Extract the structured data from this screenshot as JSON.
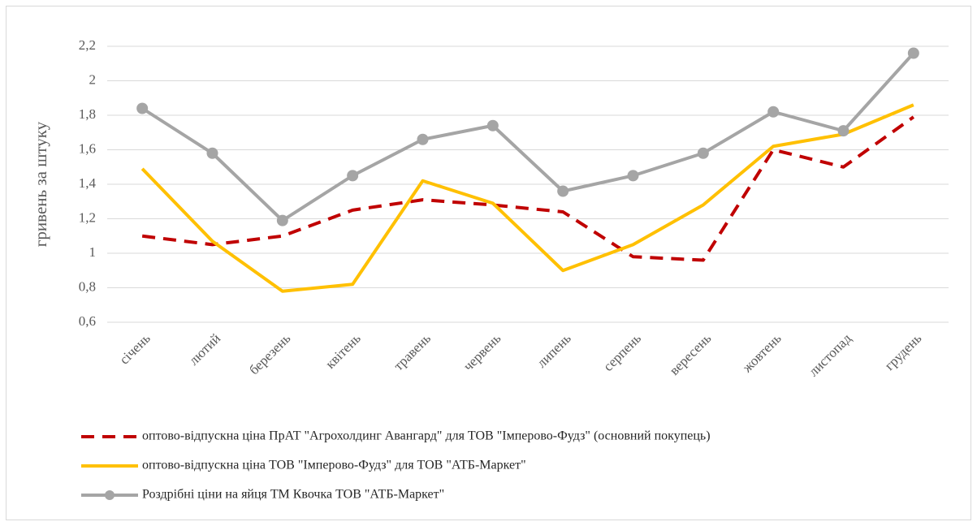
{
  "chart_data": {
    "type": "line",
    "y_label": "гривень за штуку",
    "categories": [
      "січень",
      "лютий",
      "березень",
      "квітень",
      "травень",
      "червень",
      "липень",
      "серпень",
      "вересень",
      "жовтень",
      "листопад",
      "грудень"
    ],
    "series": [
      {
        "name": "оптово-відпускна ціна ПрАТ \"Агрохолдинг Авангард\" для ТОВ \"Імперово-Фудз\" (основний покупець)",
        "color": "#c00000",
        "dashed": true,
        "markers": false,
        "values": [
          1.1,
          1.05,
          1.1,
          1.25,
          1.31,
          1.28,
          1.24,
          0.98,
          0.96,
          1.6,
          1.5,
          1.79
        ]
      },
      {
        "name": "оптово-відпускна ціна ТОВ \"Імперово-Фудз\" для ТОВ \"АТБ-Маркет\"",
        "color": "#ffc000",
        "dashed": false,
        "markers": false,
        "values": [
          1.49,
          1.07,
          0.78,
          0.82,
          1.42,
          1.29,
          0.9,
          1.05,
          1.28,
          1.62,
          1.69,
          1.86
        ]
      },
      {
        "name": "Роздрібні ціни на яйця ТМ Квочка ТОВ \"АТБ-Маркет\"",
        "color": "#a5a5a5",
        "dashed": false,
        "markers": true,
        "values": [
          1.84,
          1.58,
          1.19,
          1.45,
          1.66,
          1.74,
          1.36,
          1.45,
          1.58,
          1.82,
          1.71,
          2.16
        ]
      }
    ],
    "ylim": [
      0.6,
      2.2
    ],
    "yticks": [
      {
        "value": 0.6,
        "label": "0,6"
      },
      {
        "value": 0.8,
        "label": "0,8"
      },
      1,
      {
        "value": 1.2,
        "label": "1,2"
      },
      {
        "value": 1.4,
        "label": "1,4"
      },
      {
        "value": 1.6,
        "label": "1,6"
      },
      {
        "value": 1.8,
        "label": "1,8"
      },
      2,
      {
        "value": 2.2,
        "label": "2,2"
      }
    ],
    "grid": true,
    "legend": "bottom"
  }
}
